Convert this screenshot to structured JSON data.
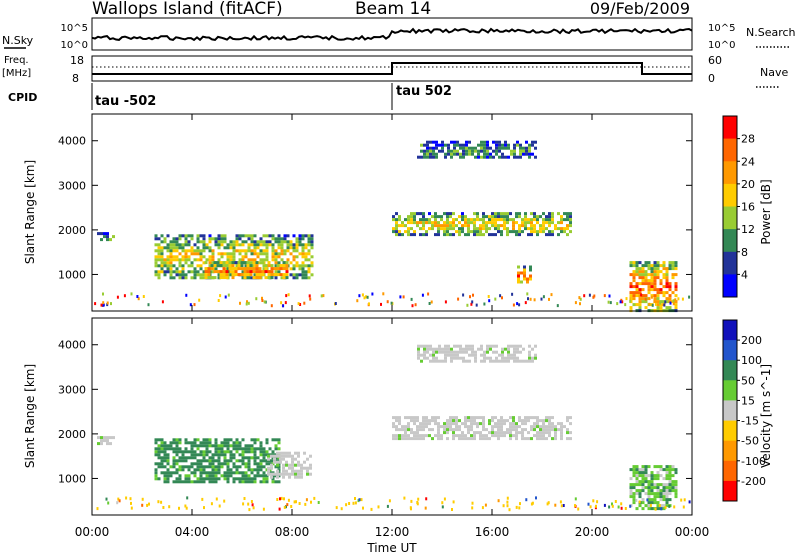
{
  "header": {
    "station": "Wallops Island (fitACF)",
    "beam": "Beam 14",
    "date": "09/Feb/2009"
  },
  "top_panels": {
    "nsky_label": "N.Sky",
    "nsky_ticks": [
      "10^5",
      "10^0"
    ],
    "nsearch_label": "N.Search",
    "nsearch_ticks": [
      "10^5",
      "10^0"
    ],
    "freq_label_1": "Freq.",
    "freq_label_2": "[MHz]",
    "freq_ticks": [
      "18",
      "8"
    ],
    "nave_label": "Nave",
    "nave_ticks": [
      "60",
      "0"
    ],
    "cpid_label": "CPID",
    "cpid_segments": [
      {
        "label": "tau -502",
        "start_hour": 0
      },
      {
        "label": "tau 502",
        "start_hour": 12
      }
    ]
  },
  "chart_data": [
    {
      "type": "heatmap",
      "title": "",
      "xlabel": "",
      "ylabel": "Slant Range [km]",
      "xlim": [
        0,
        24
      ],
      "ylim": [
        180,
        4600
      ],
      "yticks": [
        1000,
        2000,
        3000,
        4000
      ],
      "colorbar": {
        "label": "Power [dB]",
        "ticks": [
          "28",
          "24",
          "20",
          "16",
          "12",
          "8",
          "4"
        ],
        "colors": [
          "#ff0000",
          "#ff6600",
          "#ff9900",
          "#ffcc00",
          "#99cc33",
          "#338855",
          "#223399",
          "#0000ff"
        ]
      },
      "regions": [
        {
          "start_hour": 0.2,
          "end_hour": 0.9,
          "range_low": 1750,
          "range_high": 1950,
          "level": "low"
        },
        {
          "start_hour": 2.5,
          "end_hour": 8.8,
          "range_low": 900,
          "range_high": 1900,
          "level": "mid"
        },
        {
          "start_hour": 4.5,
          "end_hour": 7.8,
          "range_low": 900,
          "range_high": 1300,
          "level": "high"
        },
        {
          "start_hour": 12.0,
          "end_hour": 19.2,
          "range_low": 1900,
          "range_high": 2400,
          "level": "mid"
        },
        {
          "start_hour": 13.0,
          "end_hour": 17.8,
          "range_low": 3600,
          "range_high": 4000,
          "level": "low"
        },
        {
          "start_hour": 17.0,
          "end_hour": 17.6,
          "range_low": 800,
          "range_high": 1200,
          "level": "high"
        },
        {
          "start_hour": 21.5,
          "end_hour": 23.4,
          "range_low": 200,
          "range_high": 1300,
          "level": "high"
        }
      ]
    },
    {
      "type": "heatmap",
      "title": "",
      "xlabel": "Time UT",
      "ylabel": "Slant Range [km]",
      "xlim": [
        0,
        24
      ],
      "ylim": [
        180,
        4600
      ],
      "yticks": [
        1000,
        2000,
        3000,
        4000
      ],
      "xticks": [
        "00:00",
        "04:00",
        "08:00",
        "12:00",
        "16:00",
        "20:00",
        "00:00"
      ],
      "colorbar": {
        "label": "Velocity [m s^-1]",
        "ticks": [
          "200",
          "100",
          "50",
          "15",
          "-15",
          "-50",
          "-100",
          "-200"
        ],
        "colors": [
          "#1111bb",
          "#2255cc",
          "#338855",
          "#66cc33",
          "#c8c8c8",
          "#ffcc00",
          "#ff9900",
          "#ff6600",
          "#ff0000"
        ]
      },
      "regions": [
        {
          "start_hour": 0.2,
          "end_hour": 0.9,
          "range_low": 1750,
          "range_high": 1950,
          "velocity": 0
        },
        {
          "start_hour": 2.5,
          "end_hour": 7.5,
          "range_low": 900,
          "range_high": 1900,
          "velocity": 40
        },
        {
          "start_hour": 7.0,
          "end_hour": 8.8,
          "range_low": 1000,
          "range_high": 1600,
          "velocity": 0
        },
        {
          "start_hour": 12.0,
          "end_hour": 19.2,
          "range_low": 1900,
          "range_high": 2400,
          "velocity": 0
        },
        {
          "start_hour": 13.0,
          "end_hour": 17.8,
          "range_low": 3600,
          "range_high": 4000,
          "velocity": 0
        },
        {
          "start_hour": 21.5,
          "end_hour": 23.4,
          "range_low": 300,
          "range_high": 1300,
          "velocity": 20
        }
      ]
    }
  ]
}
